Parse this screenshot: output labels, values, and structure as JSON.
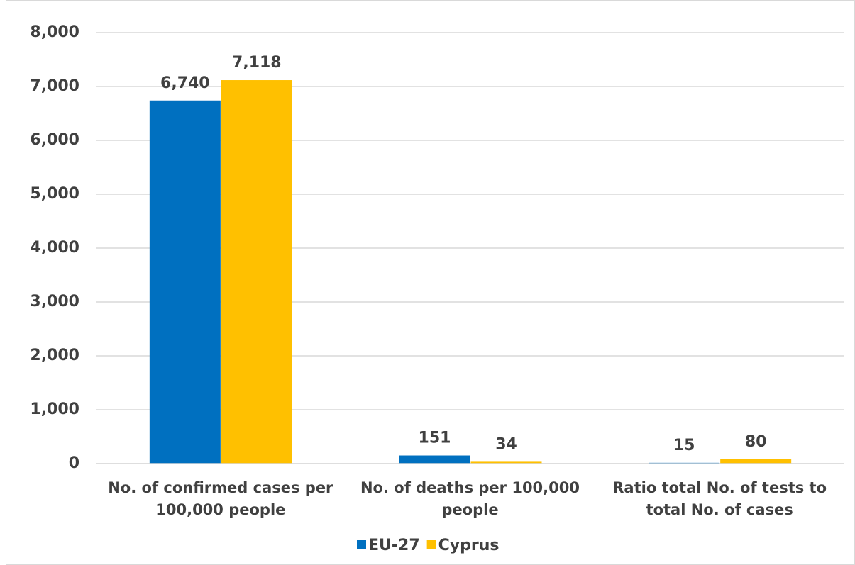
{
  "chart_data": {
    "type": "bar",
    "categories": [
      "No. of confirmed cases per 100,000 people",
      "No. of deaths per 100,000 people",
      "Ratio total No. of tests to total No. of cases"
    ],
    "series": [
      {
        "name": "EU-27",
        "color": "#0070c0",
        "values": [
          6740,
          151,
          15
        ],
        "value_labels": [
          "6,740",
          "151",
          "15"
        ]
      },
      {
        "name": "Cyprus",
        "color": "#ffc000",
        "values": [
          7118,
          34,
          80
        ],
        "value_labels": [
          "7,118",
          "34",
          "80"
        ]
      }
    ],
    "ylim": [
      0,
      8000
    ],
    "yticks": [
      0,
      {
        "value": 1000,
        "label": "1,000"
      },
      {
        "value": 2000,
        "label": "2,000"
      },
      {
        "value": 3000,
        "label": "3,000"
      },
      {
        "value": 4000,
        "label": "4,000"
      },
      {
        "value": 5000,
        "label": "5,000"
      },
      {
        "value": 6000,
        "label": "6,000"
      },
      {
        "value": 7000,
        "label": "7,000"
      },
      {
        "value": 8000,
        "label": "8,000"
      }
    ],
    "grid": true,
    "legend": "bottom"
  }
}
